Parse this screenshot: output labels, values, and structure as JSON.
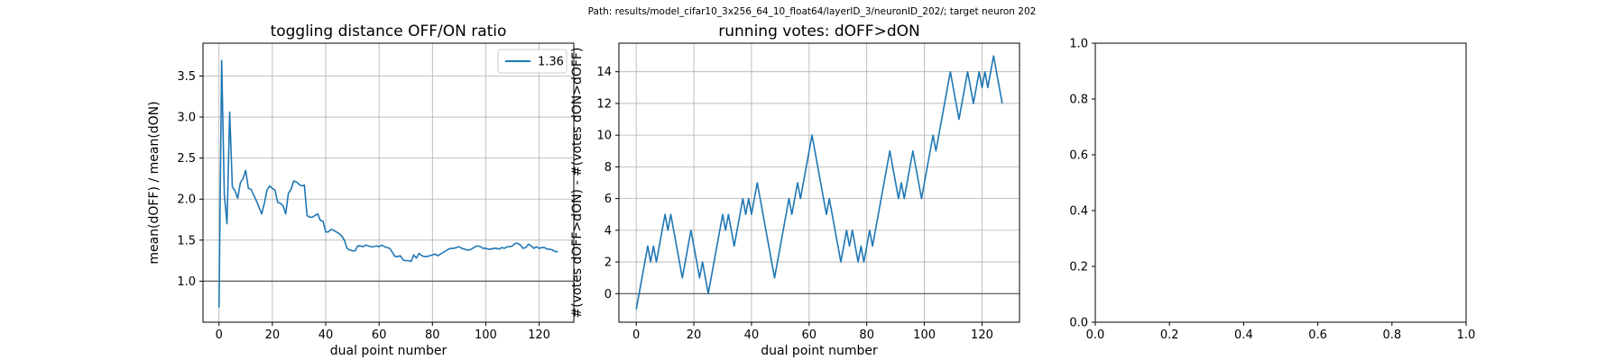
{
  "suptitle": "Path: results/model_cifar10_3x256_64_10_float64/layerID_3/neuronID_202/; target neuron 202",
  "line_color": "#1f77b4",
  "chart_data": [
    {
      "type": "line",
      "title": "toggling distance OFF/ON ratio",
      "xlabel": "dual point number",
      "ylabel": "mean(dOFF) / mean(dON)",
      "xlim": [
        -6,
        133
      ],
      "ylim": [
        0.5,
        3.9
      ],
      "xticks": [
        0,
        20,
        40,
        60,
        80,
        100,
        120
      ],
      "yticks": [
        1.0,
        1.5,
        2.0,
        2.5,
        3.0,
        3.5
      ],
      "grid": true,
      "hline": 1.0,
      "legend": {
        "position": "top-right",
        "entries": [
          "1.36"
        ]
      },
      "series": [
        {
          "name": "1.36",
          "x": [
            0,
            1,
            2,
            3,
            4,
            5,
            6,
            7,
            8,
            9,
            10,
            11,
            12,
            13,
            14,
            15,
            16,
            17,
            18,
            19,
            20,
            21,
            22,
            23,
            24,
            25,
            26,
            27,
            28,
            29,
            30,
            31,
            32,
            33,
            34,
            35,
            36,
            37,
            38,
            39,
            40,
            41,
            42,
            43,
            44,
            45,
            46,
            47,
            48,
            49,
            50,
            51,
            52,
            53,
            54,
            55,
            56,
            57,
            58,
            59,
            60,
            61,
            62,
            63,
            64,
            65,
            66,
            67,
            68,
            69,
            70,
            71,
            72,
            73,
            74,
            75,
            76,
            77,
            78,
            79,
            80,
            81,
            82,
            83,
            84,
            85,
            86,
            87,
            88,
            89,
            90,
            91,
            92,
            93,
            94,
            95,
            96,
            97,
            98,
            99,
            100,
            101,
            102,
            103,
            104,
            105,
            106,
            107,
            108,
            109,
            110,
            111,
            112,
            113,
            114,
            115,
            116,
            117,
            118,
            119,
            120,
            121,
            122,
            123,
            124,
            125,
            126,
            127
          ],
          "values": [
            0.68,
            3.69,
            2.05,
            1.7,
            3.06,
            2.15,
            2.1,
            2.01,
            2.2,
            2.25,
            2.35,
            2.13,
            2.12,
            2.05,
            1.98,
            1.9,
            1.82,
            1.95,
            2.11,
            2.16,
            2.13,
            2.11,
            1.96,
            1.95,
            1.92,
            1.82,
            2.07,
            2.12,
            2.22,
            2.21,
            2.18,
            2.16,
            2.17,
            1.8,
            1.78,
            1.78,
            1.8,
            1.82,
            1.74,
            1.73,
            1.6,
            1.6,
            1.63,
            1.62,
            1.6,
            1.58,
            1.55,
            1.5,
            1.4,
            1.38,
            1.37,
            1.37,
            1.43,
            1.43,
            1.42,
            1.44,
            1.43,
            1.42,
            1.42,
            1.43,
            1.42,
            1.44,
            1.42,
            1.41,
            1.4,
            1.35,
            1.3,
            1.3,
            1.31,
            1.26,
            1.25,
            1.25,
            1.24,
            1.32,
            1.28,
            1.34,
            1.31,
            1.3,
            1.3,
            1.31,
            1.32,
            1.33,
            1.31,
            1.33,
            1.35,
            1.37,
            1.39,
            1.4,
            1.4,
            1.41,
            1.42,
            1.4,
            1.39,
            1.38,
            1.38,
            1.4,
            1.42,
            1.43,
            1.42,
            1.4,
            1.4,
            1.39,
            1.39,
            1.4,
            1.4,
            1.39,
            1.41,
            1.4,
            1.42,
            1.42,
            1.43,
            1.46,
            1.46,
            1.44,
            1.4,
            1.41,
            1.45,
            1.43,
            1.4,
            1.42,
            1.4,
            1.41,
            1.41,
            1.39,
            1.39,
            1.38,
            1.36,
            1.36
          ]
        }
      ]
    },
    {
      "type": "line",
      "title": "running votes: dOFF>dON",
      "xlabel": "dual point number",
      "ylabel": "#(votes dOFF>dON) - #(votes dON>dOFF)",
      "xlim": [
        -6,
        133
      ],
      "ylim": [
        -1.8,
        15.8
      ],
      "xticks": [
        0,
        20,
        40,
        60,
        80,
        100,
        120
      ],
      "yticks": [
        0,
        2,
        4,
        6,
        8,
        10,
        12,
        14
      ],
      "grid": true,
      "hline": 0,
      "series": [
        {
          "x": [
            0,
            1,
            2,
            3,
            4,
            5,
            6,
            7,
            8,
            9,
            10,
            11,
            12,
            13,
            14,
            15,
            16,
            17,
            18,
            19,
            20,
            21,
            22,
            23,
            24,
            25,
            26,
            27,
            28,
            29,
            30,
            31,
            32,
            33,
            34,
            35,
            36,
            37,
            38,
            39,
            40,
            41,
            42,
            43,
            44,
            45,
            46,
            47,
            48,
            49,
            50,
            51,
            52,
            53,
            54,
            55,
            56,
            57,
            58,
            59,
            60,
            61,
            62,
            63,
            64,
            65,
            66,
            67,
            68,
            69,
            70,
            71,
            72,
            73,
            74,
            75,
            76,
            77,
            78,
            79,
            80,
            81,
            82,
            83,
            84,
            85,
            86,
            87,
            88,
            89,
            90,
            91,
            92,
            93,
            94,
            95,
            96,
            97,
            98,
            99,
            100,
            101,
            102,
            103,
            104,
            105,
            106,
            107,
            108,
            109,
            110,
            111,
            112,
            113,
            114,
            115,
            116,
            117,
            118,
            119,
            120,
            121,
            122,
            123,
            124,
            125,
            126,
            127
          ],
          "values": [
            -1,
            0,
            1,
            2,
            3,
            2,
            3,
            2,
            3,
            4,
            5,
            4,
            5,
            4,
            3,
            2,
            1,
            2,
            3,
            4,
            3,
            2,
            1,
            2,
            1,
            0,
            1,
            2,
            3,
            4,
            5,
            4,
            5,
            4,
            3,
            4,
            5,
            6,
            5,
            6,
            5,
            6,
            7,
            6,
            5,
            4,
            3,
            2,
            1,
            2,
            3,
            4,
            5,
            6,
            5,
            6,
            7,
            6,
            7,
            8,
            9,
            10,
            9,
            8,
            7,
            6,
            5,
            6,
            5,
            4,
            3,
            2,
            3,
            4,
            3,
            4,
            3,
            2,
            3,
            2,
            3,
            4,
            3,
            4,
            5,
            6,
            7,
            8,
            9,
            8,
            7,
            6,
            7,
            6,
            7,
            8,
            9,
            8,
            7,
            6,
            7,
            8,
            9,
            10,
            9,
            10,
            11,
            12,
            13,
            14,
            13,
            12,
            11,
            12,
            13,
            14,
            13,
            12,
            13,
            14,
            13,
            14,
            13,
            14,
            15,
            14,
            13,
            12
          ]
        }
      ]
    },
    {
      "type": "line",
      "title": "",
      "xlim": [
        0,
        1
      ],
      "ylim": [
        0,
        1
      ],
      "xticks": [
        0.0,
        0.2,
        0.4,
        0.6,
        0.8,
        1.0
      ],
      "yticks": [
        0.0,
        0.2,
        0.4,
        0.6,
        0.8,
        1.0
      ],
      "grid": false,
      "series": []
    }
  ]
}
